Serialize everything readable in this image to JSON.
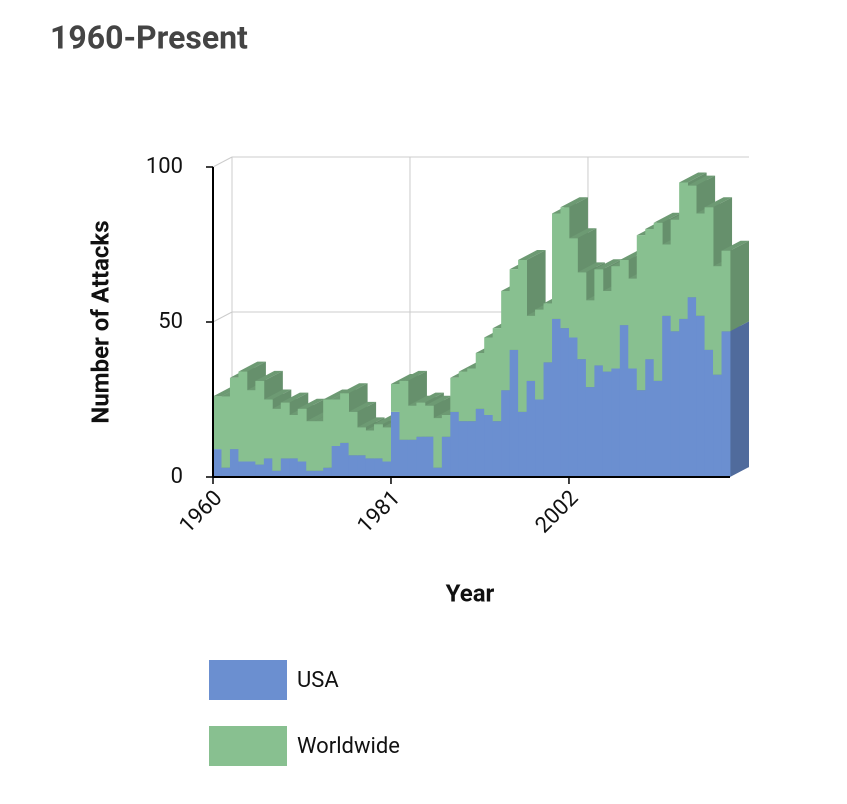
{
  "chart_data": {
    "type": "stacked-area-3d",
    "title": "1960-Present",
    "x_label": "Year",
    "y_label": "Number of Attacks",
    "x": [
      1960,
      1961,
      1962,
      1963,
      1964,
      1965,
      1966,
      1967,
      1968,
      1969,
      1970,
      1971,
      1972,
      1973,
      1974,
      1975,
      1976,
      1977,
      1978,
      1979,
      1980,
      1981,
      1982,
      1983,
      1984,
      1985,
      1986,
      1987,
      1988,
      1989,
      1990,
      1991,
      1992,
      1993,
      1994,
      1995,
      1996,
      1997,
      1998,
      1999,
      2000,
      2001,
      2002,
      2003,
      2004,
      2005,
      2006,
      2007,
      2008,
      2009,
      2010,
      2011,
      2012,
      2013,
      2014,
      2015,
      2016,
      2017,
      2018,
      2019,
      2020
    ],
    "series": [
      {
        "name": "USA",
        "color": "#6b8fd0",
        "values": [
          9,
          3,
          9,
          5,
          5,
          4,
          6,
          2,
          6,
          6,
          5,
          2,
          2,
          3,
          10,
          11,
          7,
          7,
          6,
          6,
          5,
          21,
          12,
          12,
          13,
          13,
          3,
          13,
          21,
          18,
          18,
          22,
          20,
          18,
          28,
          41,
          21,
          31,
          25,
          37,
          51,
          48,
          45,
          38,
          29,
          36,
          34,
          35,
          49,
          35,
          28,
          38,
          31,
          52,
          47,
          51,
          58,
          52,
          41,
          33,
          47
        ]
      },
      {
        "name": "Worldwide",
        "color": "#88c090",
        "values": [
          17,
          23,
          23,
          29,
          23,
          27,
          19,
          20,
          18,
          14,
          17,
          16,
          16,
          22,
          15,
          16,
          14,
          9,
          9,
          11,
          11,
          9,
          19,
          11,
          11,
          10,
          16,
          7,
          11,
          16,
          17,
          18,
          25,
          30,
          32,
          26,
          49,
          21,
          29,
          19,
          34,
          39,
          32,
          28,
          28,
          31,
          26,
          33,
          21,
          29,
          50,
          42,
          51,
          23,
          36,
          44,
          36,
          33,
          46,
          35,
          26
        ]
      }
    ],
    "xlim": [
      1960,
      2021
    ],
    "xticks": [
      1960,
      1981,
      2002
    ],
    "ylim": [
      0,
      100
    ],
    "yticks": [
      0,
      50,
      100
    ],
    "grid": true,
    "legend": "bottom"
  }
}
